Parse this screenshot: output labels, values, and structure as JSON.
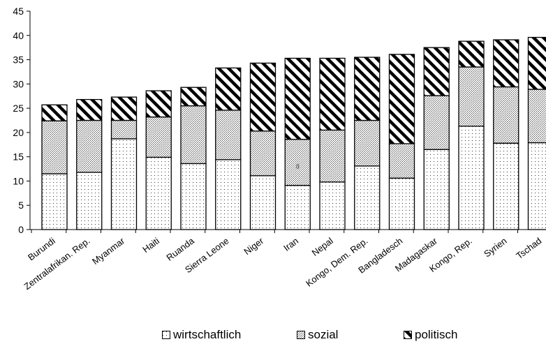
{
  "chart_data": {
    "type": "bar",
    "stacked": true,
    "title": "",
    "xlabel": "",
    "ylabel": "",
    "ylim": [
      0,
      45
    ],
    "yticks": [
      0,
      5,
      10,
      15,
      20,
      25,
      30,
      35,
      40,
      45
    ],
    "grid": false,
    "legend_position": "bottom",
    "categories": [
      "Burundi",
      "Zentralafrikan. Rep.",
      "Myanmar",
      "Haiti",
      "Ruanda",
      "Sierra Leone",
      "Niger",
      "Iran",
      "Nepal",
      "Kongo, Dem. Rep.",
      "Bangladesch",
      "Madagaskar",
      "Kongo, Rep.",
      "Syrien",
      "Tschad"
    ],
    "series": [
      {
        "name": "wirtschaftlich",
        "pattern": "dots",
        "values": [
          11.5,
          11.8,
          18.7,
          14.9,
          13.6,
          14.4,
          11.1,
          9.1,
          9.8,
          13.1,
          10.6,
          16.5,
          21.3,
          17.8,
          17.9
        ]
      },
      {
        "name": "sozial",
        "pattern": "dense-dots",
        "values": [
          10.9,
          10.7,
          3.8,
          8.3,
          11.9,
          10.2,
          9.2,
          9.5,
          10.7,
          9.4,
          7.1,
          11.1,
          12.2,
          11.6,
          11.0
        ]
      },
      {
        "name": "politisch",
        "pattern": "diagonal-stripes",
        "values": [
          3.3,
          4.3,
          4.8,
          5.4,
          3.8,
          8.7,
          14.0,
          16.7,
          14.8,
          13.0,
          18.4,
          9.9,
          5.3,
          9.7,
          10.7
        ]
      }
    ],
    "annotations": [
      "8"
    ],
    "colors": {
      "stroke": "#000000",
      "fill": "#ffffff",
      "text": "#000000"
    }
  }
}
